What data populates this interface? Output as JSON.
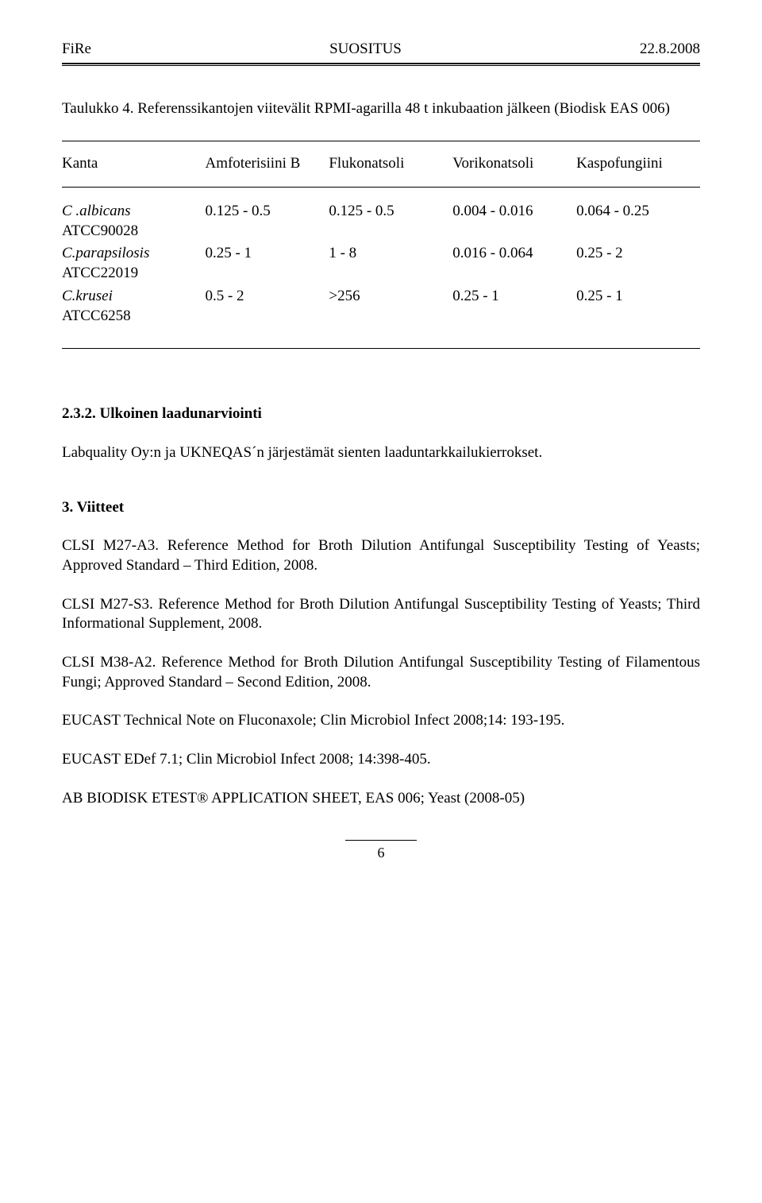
{
  "header": {
    "left": "FiRe",
    "center": "SUOSITUS",
    "right": "22.8.2008"
  },
  "caption": "Taulukko 4. Referenssikantojen viitevälit RPMI-agarilla 48 t  inkubaation jälkeen (Biodisk EAS 006)",
  "table": {
    "headers": [
      "Kanta",
      "Amfoterisiini B",
      "Flukonatsoli",
      "Vorikonatsoli",
      "Kaspofungiini"
    ],
    "rows": [
      {
        "strain_it": "C .albicans",
        "strain_code": "ATCC90028",
        "v1": "0.125 - 0.5",
        "v2": "0.125  - 0.5",
        "v3": "0.004 - 0.016",
        "v4": "0.064 - 0.25"
      },
      {
        "strain_it": "C.parapsilosis",
        "strain_code": "ATCC22019",
        "v1": "0.25   - 1",
        "v2": "1        - 8",
        "v3": "0.016 - 0.064",
        "v4": "0.25   -  2"
      },
      {
        "strain_it": "C.krusei",
        "strain_code": "ATCC6258",
        "v1": "0.5    - 2",
        "v2": ">256",
        "v3": "0.25   - 1",
        "v4": "0.25   -  1"
      }
    ]
  },
  "section232": {
    "heading": "2.3.2. Ulkoinen laadunarviointi",
    "body": "Labquality Oy:n ja UKNEQAS´n järjestämät sienten laaduntarkkailukierrokset."
  },
  "section3": {
    "heading": "3. Viitteet",
    "refs": [
      "CLSI M27-A3. Reference Method for Broth Dilution Antifungal Susceptibility Testing of Yeasts; Approved Standard – Third Edition, 2008.",
      "CLSI M27-S3.  Reference Method for Broth Dilution Antifungal Susceptibility Testing of Yeasts; Third Informational Supplement, 2008.",
      "CLSI M38-A2.  Reference Method for Broth Dilution Antifungal Susceptibility Testing of Filamentous Fungi; Approved Standard – Second Edition, 2008.",
      "EUCAST Technical Note on Fluconaxole; Clin Microbiol Infect 2008;14: 193-195.",
      "EUCAST EDef 7.1; Clin Microbiol Infect 2008; 14:398-405.",
      "AB BIODISK ETEST® APPLICATION SHEET, EAS 006; Yeast (2008-05)"
    ]
  },
  "page_number": "6"
}
